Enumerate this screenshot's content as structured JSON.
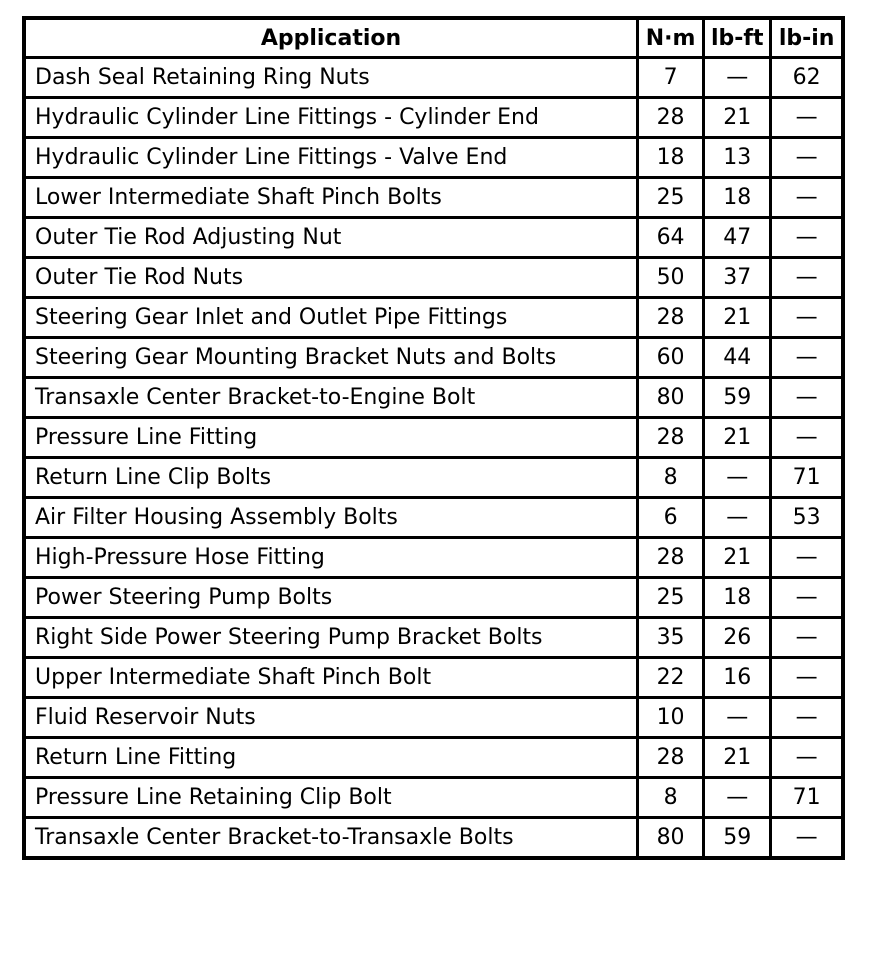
{
  "headers": [
    "Application",
    "N·m",
    "lb-ft",
    "lb-in"
  ],
  "rows": [
    [
      "Dash Seal Retaining Ring Nuts",
      "7",
      "—",
      "62"
    ],
    [
      "Hydraulic Cylinder Line Fittings - Cylinder End",
      "28",
      "21",
      "—"
    ],
    [
      "Hydraulic Cylinder Line Fittings - Valve End",
      "18",
      "13",
      "—"
    ],
    [
      "Lower Intermediate Shaft Pinch Bolts",
      "25",
      "18",
      "—"
    ],
    [
      "Outer Tie Rod Adjusting Nut",
      "64",
      "47",
      "—"
    ],
    [
      "Outer Tie Rod Nuts",
      "50",
      "37",
      "—"
    ],
    [
      "Steering Gear Inlet and Outlet Pipe Fittings",
      "28",
      "21",
      "—"
    ],
    [
      "Steering Gear Mounting Bracket Nuts and Bolts",
      "60",
      "44",
      "—"
    ],
    [
      "Transaxle Center Bracket-to-Engine Bolt",
      "80",
      "59",
      "—"
    ],
    [
      "Pressure Line Fitting",
      "28",
      "21",
      "—"
    ],
    [
      "Return Line Clip Bolts",
      "8",
      "—",
      "71"
    ],
    [
      "Air Filter Housing Assembly Bolts",
      "6",
      "—",
      "53"
    ],
    [
      "High-Pressure Hose Fitting",
      "28",
      "21",
      "—"
    ],
    [
      "Power Steering Pump Bolts",
      "25",
      "18",
      "—"
    ],
    [
      "Right Side Power Steering Pump Bracket Bolts",
      "35",
      "26",
      "—"
    ],
    [
      "Upper Intermediate Shaft Pinch Bolt",
      "22",
      "16",
      "—"
    ],
    [
      "Fluid Reservoir Nuts",
      "10",
      "—",
      "—"
    ],
    [
      "Return Line Fitting",
      "28",
      "21",
      "—"
    ],
    [
      "Pressure Line Retaining Clip Bolt",
      "8",
      "—",
      "71"
    ],
    [
      "Transaxle Center Bracket-to-Transaxle Bolts",
      "80",
      "59",
      "—"
    ]
  ]
}
